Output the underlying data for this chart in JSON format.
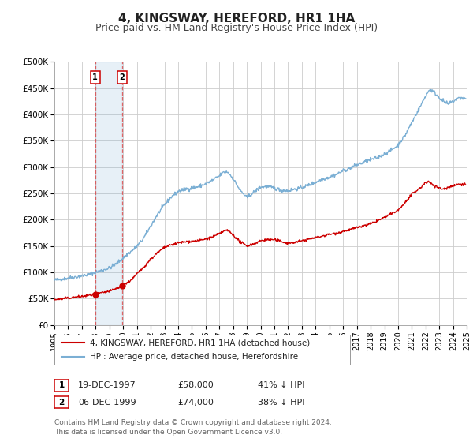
{
  "title": "4, KINGSWAY, HEREFORD, HR1 1HA",
  "subtitle": "Price paid vs. HM Land Registry's House Price Index (HPI)",
  "ylim": [
    0,
    500000
  ],
  "xlim": [
    1995,
    2025
  ],
  "yticks": [
    0,
    50000,
    100000,
    150000,
    200000,
    250000,
    300000,
    350000,
    400000,
    450000,
    500000
  ],
  "ytick_labels": [
    "£0",
    "£50K",
    "£100K",
    "£150K",
    "£200K",
    "£250K",
    "£300K",
    "£350K",
    "£400K",
    "£450K",
    "£500K"
  ],
  "xticks": [
    1995,
    1996,
    1997,
    1998,
    1999,
    2000,
    2001,
    2002,
    2003,
    2004,
    2005,
    2006,
    2007,
    2008,
    2009,
    2010,
    2011,
    2012,
    2013,
    2014,
    2015,
    2016,
    2017,
    2018,
    2019,
    2020,
    2021,
    2022,
    2023,
    2024,
    2025
  ],
  "background_color": "#ffffff",
  "plot_bg_color": "#ffffff",
  "grid_color": "#cccccc",
  "transaction_color": "#cc0000",
  "hpi_color": "#7bafd4",
  "title_fontsize": 11,
  "subtitle_fontsize": 9,
  "legend_label_red": "4, KINGSWAY, HEREFORD, HR1 1HA (detached house)",
  "legend_label_blue": "HPI: Average price, detached house, Herefordshire",
  "purchase1_date": 1997.97,
  "purchase1_price": 58000,
  "purchase1_label": "1",
  "purchase2_date": 1999.93,
  "purchase2_price": 74000,
  "purchase2_label": "2",
  "table_rows": [
    {
      "num": "1",
      "date": "19-DEC-1997",
      "price": "£58,000",
      "hpi": "41% ↓ HPI"
    },
    {
      "num": "2",
      "date": "06-DEC-1999",
      "price": "£74,000",
      "hpi": "38% ↓ HPI"
    }
  ],
  "footer": "Contains HM Land Registry data © Crown copyright and database right 2024.\nThis data is licensed under the Open Government Licence v3.0.",
  "vspan_x1": 1997.97,
  "vspan_x2": 1999.93
}
